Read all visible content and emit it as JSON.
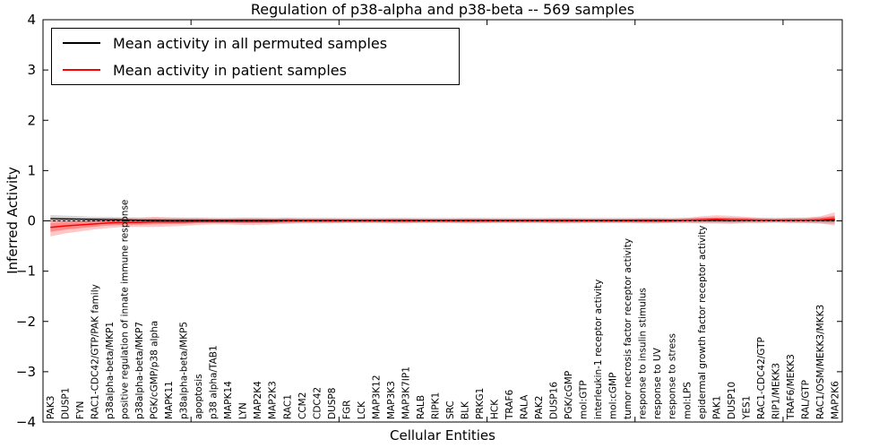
{
  "chart_data": {
    "type": "line",
    "title": "Regulation of p38-alpha and p38-beta -- 569 samples",
    "xlabel": "Cellular Entities",
    "ylabel": "Inferred Activity",
    "ylim": [
      -4,
      4
    ],
    "yticks": [
      -4,
      -3,
      -2,
      -1,
      0,
      1,
      2,
      3,
      4
    ],
    "x_major_tick_units": [
      10,
      20,
      30,
      40,
      50
    ],
    "grid": false,
    "legend_position": "upper left",
    "zero_reference_line": 0,
    "colors": {
      "permuted_line": "#000000",
      "patient_line": "#ff0000",
      "patient_band_outer": "rgba(255,0,0,0.22)",
      "patient_band_inner": "rgba(255,0,0,0.30)",
      "permuted_band": "rgba(0,0,0,0.16)",
      "zero_line": "#000000",
      "axis": "#000000"
    },
    "legend": [
      {
        "label": "Mean activity in all permuted samples",
        "color": "#000000"
      },
      {
        "label": "Mean activity in patient samples",
        "color": "#ff0000"
      }
    ],
    "categories": [
      "PAK3",
      "DUSP1",
      "FYN",
      "RAC1-CDC42/GTP/PAK family",
      "p38alpha-beta/MKP1",
      "positive regulation of innate immune response",
      "p38alpha-beta/MKP7",
      "PGK/cGMP/p38 alpha",
      "MAPK11",
      "p38alpha-beta/MKP5",
      "apoptosis",
      "p38 alpha/TAB1",
      "MAPK14",
      "LYN",
      "MAP2K4",
      "MAP2K3",
      "RAC1",
      "CCM2",
      "CDC42",
      "DUSP8",
      "FGR",
      "LCK",
      "MAP3K12",
      "MAP3K3",
      "MAP3K7IP1",
      "RALB",
      "RIPK1",
      "SRC",
      "BLK",
      "PRKG1",
      "HCK",
      "TRAF6",
      "RALA",
      "PAK2",
      "DUSP16",
      "PGK/cGMP",
      "mol:GTP",
      "interleukin-1 receptor activity",
      "mol:cGMP",
      "tumor necrosis factor receptor activity",
      "response to insulin stimulus",
      "response to UV",
      "response to stress",
      "mol:LPS",
      "epidermal growth factor receptor activity",
      "PAK1",
      "DUSP10",
      "YES1",
      "RAC1-CDC42/GTP",
      "RIP1/MEKK3",
      "TRAF6/MEKK3",
      "RAL/GTP",
      "RAC1/OSM/MEKK3/MKK3",
      "MAP2K6"
    ],
    "series": [
      {
        "name": "Mean activity in all permuted samples",
        "values": [
          0.045,
          0.04,
          0.035,
          0.03,
          0.025,
          0.02,
          0.015,
          0.012,
          0.01,
          0.01,
          0.01,
          0.01,
          0.01,
          0.01,
          0.01,
          0.01,
          0.01,
          0.01,
          0.01,
          0.01,
          0.01,
          0.01,
          0.01,
          0.01,
          0.01,
          0.01,
          0.01,
          0.01,
          0.01,
          0.01,
          0.01,
          0.01,
          0.01,
          0.01,
          0.01,
          0.01,
          0.01,
          0.01,
          0.01,
          0.01,
          0.01,
          0.01,
          0.01,
          0.01,
          0.01,
          0.01,
          0.01,
          0.01,
          0.01,
          0.01,
          0.01,
          0.01,
          0.012,
          0.015
        ],
        "band_halfwidth": [
          0.07,
          0.065,
          0.06,
          0.05,
          0.05,
          0.05,
          0.05,
          0.05,
          0.05,
          0.05,
          0.05,
          0.05,
          0.05,
          0.05,
          0.05,
          0.05,
          0.05,
          0.05,
          0.05,
          0.05,
          0.05,
          0.05,
          0.05,
          0.05,
          0.05,
          0.05,
          0.05,
          0.05,
          0.05,
          0.05,
          0.05,
          0.05,
          0.05,
          0.05,
          0.05,
          0.05,
          0.05,
          0.05,
          0.05,
          0.05,
          0.05,
          0.05,
          0.05,
          0.05,
          0.05,
          0.05,
          0.05,
          0.05,
          0.05,
          0.05,
          0.05,
          0.055,
          0.06,
          0.07
        ]
      },
      {
        "name": "Mean activity in patient samples",
        "values": [
          -0.13,
          -0.1,
          -0.08,
          -0.06,
          -0.04,
          -0.03,
          -0.03,
          -0.02,
          -0.02,
          -0.02,
          -0.01,
          -0.01,
          -0.01,
          -0.01,
          -0.01,
          -0.01,
          0,
          0,
          0,
          0,
          0,
          0,
          0,
          0,
          0,
          0,
          0,
          0,
          0,
          0,
          0,
          0,
          0,
          0,
          0,
          0,
          0,
          0,
          0,
          0,
          0,
          0,
          0,
          0.01,
          0.02,
          0.03,
          0.02,
          0.02,
          0.01,
          0.01,
          0.01,
          0.01,
          0.02,
          0.04
        ],
        "band_halfwidth": [
          0.18,
          0.15,
          0.13,
          0.11,
          0.1,
          0.09,
          0.09,
          0.1,
          0.09,
          0.08,
          0.07,
          0.06,
          0.06,
          0.07,
          0.07,
          0.06,
          0.06,
          0.05,
          0.05,
          0.05,
          0.04,
          0.04,
          0.04,
          0.05,
          0.05,
          0.04,
          0.04,
          0.04,
          0.05,
          0.05,
          0.04,
          0.04,
          0.04,
          0.04,
          0.05,
          0.05,
          0.04,
          0.04,
          0.04,
          0.04,
          0.05,
          0.05,
          0.04,
          0.05,
          0.07,
          0.08,
          0.08,
          0.06,
          0.05,
          0.04,
          0.05,
          0.05,
          0.07,
          0.13
        ]
      }
    ]
  }
}
